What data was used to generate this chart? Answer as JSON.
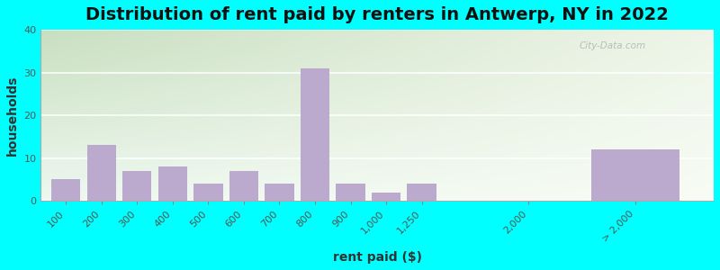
{
  "title": "Distribution of rent paid by renters in Antwerp, NY in 2022",
  "xlabel": "rent paid ($)",
  "ylabel": "households",
  "bar_labels": [
    "100",
    "200",
    "300",
    "400",
    "500",
    "600",
    "700",
    "800",
    "900",
    "1,000",
    "1,250",
    "2,000",
    "> 2,000"
  ],
  "bar_values": [
    5,
    13,
    7,
    8,
    4,
    7,
    4,
    31,
    4,
    2,
    4,
    0,
    12
  ],
  "bar_color": "#bbaace",
  "background_color": "#00ffff",
  "grid_color": "#e0e0e0",
  "ylim": [
    0,
    40
  ],
  "yticks": [
    0,
    10,
    20,
    30,
    40
  ],
  "title_fontsize": 14,
  "axis_fontsize": 10,
  "tick_fontsize": 8,
  "watermark": "City-Data.com",
  "plot_bg_color_tl": "#c8dfc0",
  "plot_bg_color_tr": "#eef5e8",
  "plot_bg_color_bl": "#eef8f0",
  "plot_bg_color_br": "#f8fcf4"
}
